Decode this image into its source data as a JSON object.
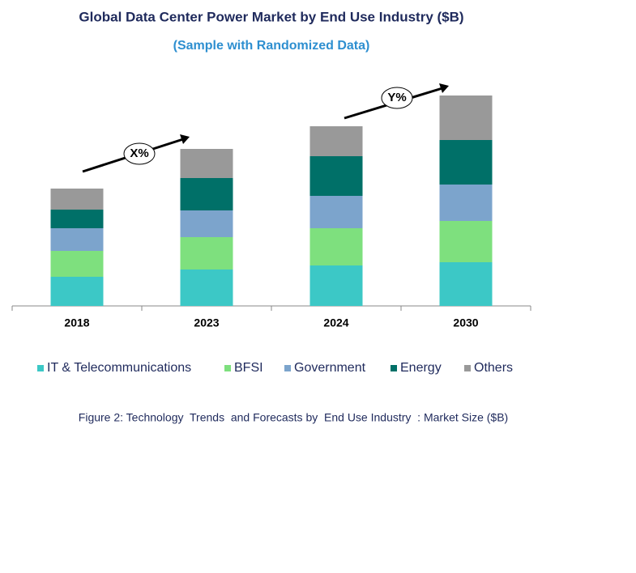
{
  "chart_data": {
    "type": "stacked-bar",
    "title": "Global Data Center Power Market by End Use Industry ($B)",
    "subtitle": "(Sample with Randomized Data)",
    "categories": [
      "2018",
      "2023",
      "2024",
      "2030"
    ],
    "series": [
      {
        "name": "IT & Telecommunications",
        "color": "#3cc8c6",
        "values": [
          36,
          45,
          50,
          54
        ]
      },
      {
        "name": "BFSI",
        "color": "#7ee07e",
        "values": [
          32,
          40,
          46,
          51
        ]
      },
      {
        "name": "Government",
        "color": "#7ca4cc",
        "values": [
          28,
          33,
          40,
          45
        ]
      },
      {
        "name": "Energy",
        "color": "#007068",
        "values": [
          23,
          40,
          49,
          55
        ]
      },
      {
        "name": "Others",
        "color": "#999999",
        "values": [
          26,
          36,
          37,
          55
        ]
      }
    ],
    "annotations": [
      "X%",
      "Y%"
    ],
    "caption": "Figure 2: Technology  Trends  and Forecasts by  End Use Industry  : Market Size ($B)"
  }
}
